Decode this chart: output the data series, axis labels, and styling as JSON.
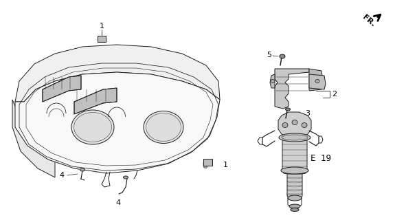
{
  "bg_color": "#ffffff",
  "line_color": "#1a1a1a",
  "label_color": "#000000",
  "lw": 0.7,
  "fs": 8
}
